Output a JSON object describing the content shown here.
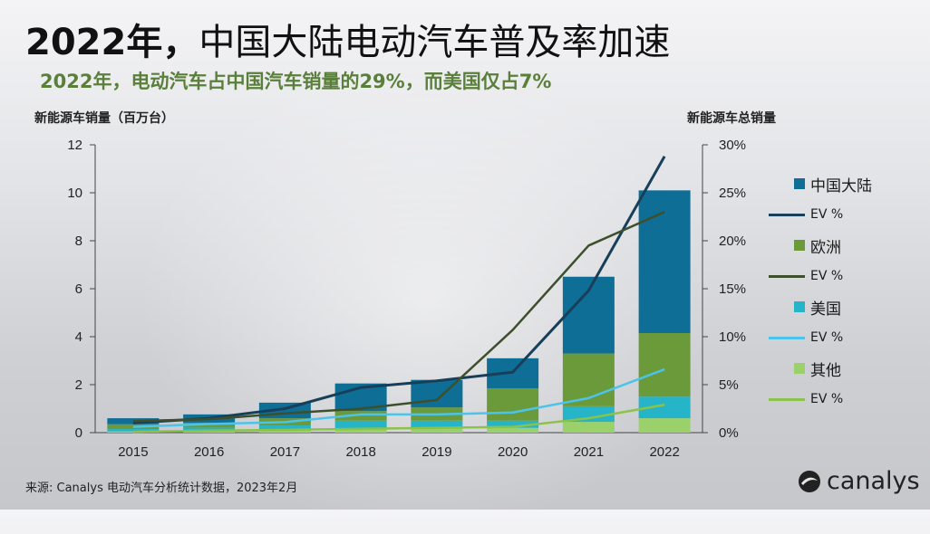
{
  "title": {
    "bold": "2022年，",
    "rest": "中国大陆电动汽车普及率加速"
  },
  "subtitle": "2022年，电动汽车占中国汽车销量的29%，而美国仅占7%",
  "colors": {
    "title": "#111111",
    "subtitle": "#5a7f3b",
    "china": "#0e6e95",
    "europe": "#6a9a3a",
    "us": "#25b4c8",
    "other": "#9ad16a",
    "china_line": "#183f5a",
    "europe_line": "#3d4f2c",
    "us_line": "#4cc3eb",
    "other_line": "#8bc34a"
  },
  "source": "来源: Canalys 电动汽车分析统计数据，2023年2月",
  "logo": {
    "text": "canalys",
    "icon": "canalys-swirl-icon"
  },
  "chart_data": {
    "type": "bar",
    "stacked": true,
    "categories": [
      "2015",
      "2016",
      "2017",
      "2018",
      "2019",
      "2020",
      "2021",
      "2022"
    ],
    "ylabel": "新能源车销量（百万台）",
    "y2label": "新能源车总销量",
    "ylim": [
      0,
      12
    ],
    "yticks": [
      "0",
      "2",
      "4",
      "6",
      "8",
      "10",
      "12"
    ],
    "y2lim": [
      0,
      30
    ],
    "y2ticks": [
      "0%",
      "5%",
      "10%",
      "15%",
      "20%",
      "25%",
      "30%"
    ],
    "grid": false,
    "legend_position": "right",
    "series": [
      {
        "name": "其他",
        "color": "#9ad16a",
        "values": [
          0.05,
          0.06,
          0.1,
          0.15,
          0.2,
          0.2,
          0.45,
          0.6
        ]
      },
      {
        "name": "美国",
        "color": "#25b4c8",
        "values": [
          0.1,
          0.15,
          0.2,
          0.35,
          0.3,
          0.3,
          0.65,
          0.9
        ]
      },
      {
        "name": "欧洲",
        "color": "#6a9a3a",
        "values": [
          0.2,
          0.2,
          0.3,
          0.4,
          0.55,
          1.35,
          2.2,
          2.65
        ]
      },
      {
        "name": "中国大陆",
        "color": "#0e6e95",
        "values": [
          0.25,
          0.35,
          0.65,
          1.15,
          1.15,
          1.25,
          3.2,
          5.95
        ]
      }
    ],
    "lines": [
      {
        "name": "EV %",
        "color": "#183f5a",
        "values": [
          1.0,
          1.5,
          2.5,
          4.7,
          5.4,
          6.3,
          14.8,
          28.8
        ]
      },
      {
        "name": "EV %",
        "color": "#3d4f2c",
        "values": [
          1.2,
          1.4,
          2.0,
          2.5,
          3.4,
          10.7,
          19.5,
          23.0
        ]
      },
      {
        "name": "EV %",
        "color": "#4cc3eb",
        "values": [
          0.6,
          0.9,
          1.1,
          1.9,
          1.9,
          2.1,
          3.6,
          6.6
        ]
      },
      {
        "name": "EV %",
        "color": "#8bc34a",
        "values": [
          0.1,
          0.2,
          0.3,
          0.4,
          0.5,
          0.6,
          1.5,
          2.9
        ]
      }
    ],
    "legend": [
      {
        "type": "box",
        "label": "中国大陆",
        "color": "#0e6e95"
      },
      {
        "type": "line",
        "label": "EV %",
        "color": "#183f5a"
      },
      {
        "type": "box",
        "label": "欧洲",
        "color": "#6a9a3a"
      },
      {
        "type": "line",
        "label": "EV %",
        "color": "#3d4f2c"
      },
      {
        "type": "box",
        "label": "美国",
        "color": "#25b4c8"
      },
      {
        "type": "line",
        "label": "EV %",
        "color": "#4cc3eb"
      },
      {
        "type": "box",
        "label": "其他",
        "color": "#9ad16a"
      },
      {
        "type": "line",
        "label": "EV %",
        "color": "#8bc34a"
      }
    ]
  }
}
